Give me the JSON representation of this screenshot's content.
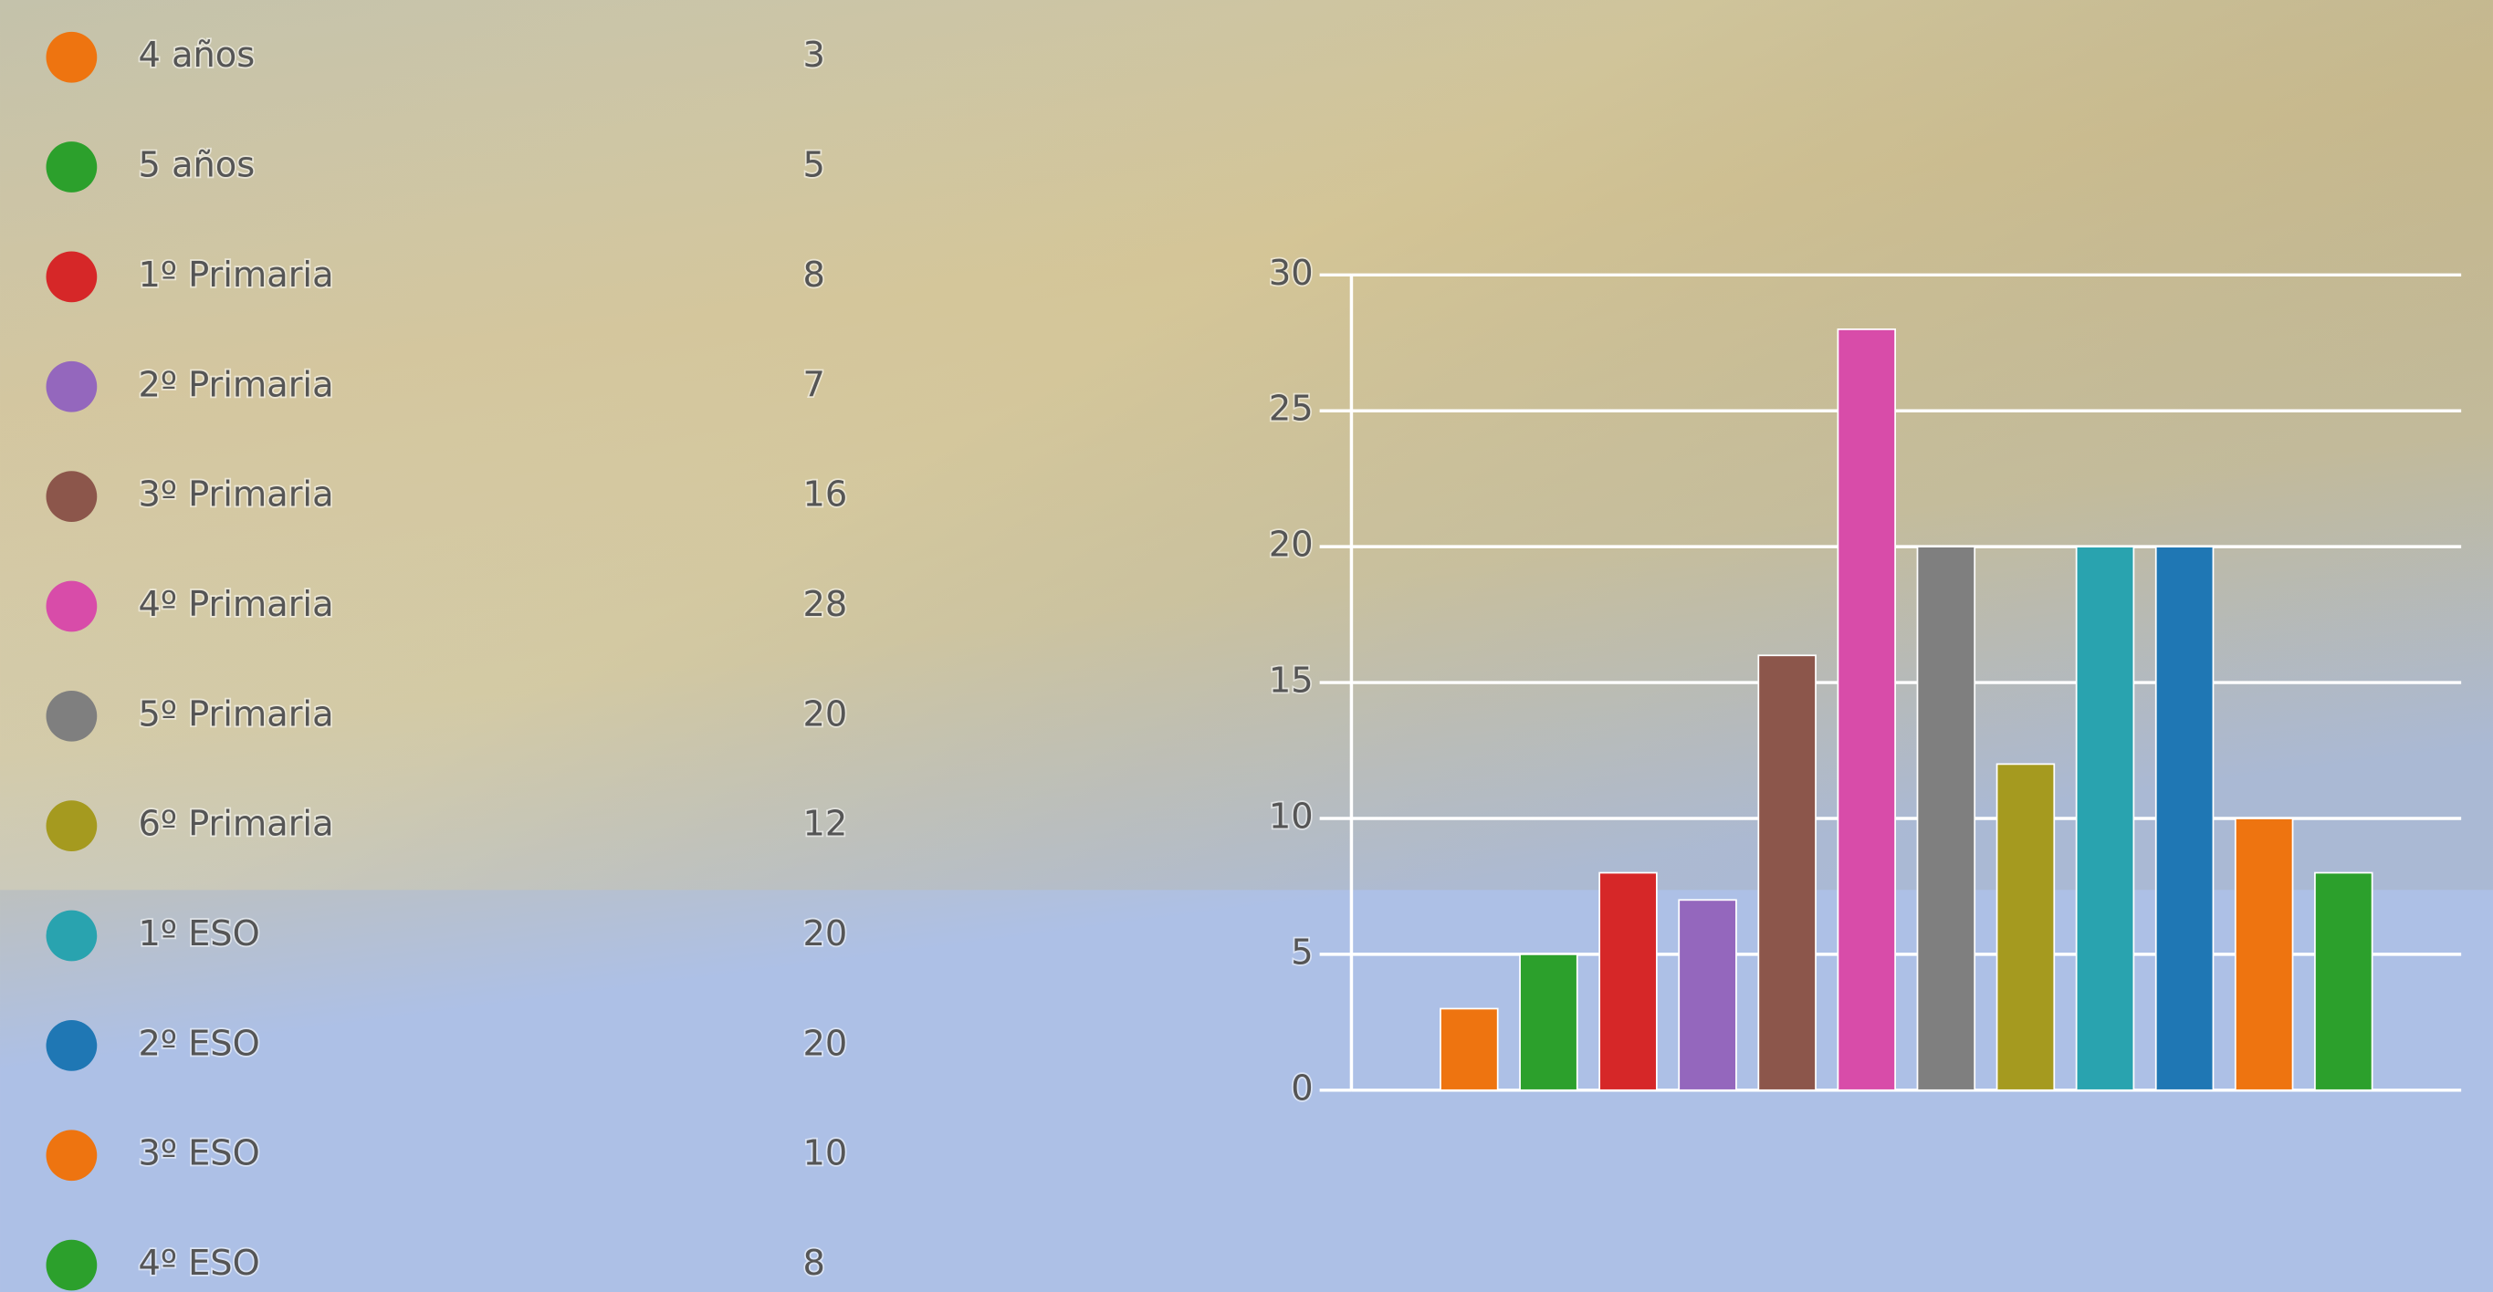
{
  "chart_data": {
    "type": "bar",
    "categories": [
      "4 años",
      "5 años",
      "1º Primaria",
      "2º Primaria",
      "3º Primaria",
      "4º Primaria",
      "5º Primaria",
      "6º Primaria",
      "1º ESO",
      "2º ESO",
      "3º ESO",
      "4º ESO"
    ],
    "values": [
      3,
      5,
      8,
      7,
      16,
      28,
      20,
      12,
      20,
      20,
      10,
      8
    ],
    "colors": [
      "#ee7410",
      "#2ca02c",
      "#d62728",
      "#9467bd",
      "#8c564b",
      "#d84ca9",
      "#7f7f7f",
      "#a59a1f",
      "#29a3af",
      "#1f77b4",
      "#ee7410",
      "#2ca02c"
    ],
    "ylim": [
      0,
      30
    ],
    "yticks": [
      0,
      5,
      10,
      15,
      20,
      25,
      30
    ],
    "grid": true
  }
}
